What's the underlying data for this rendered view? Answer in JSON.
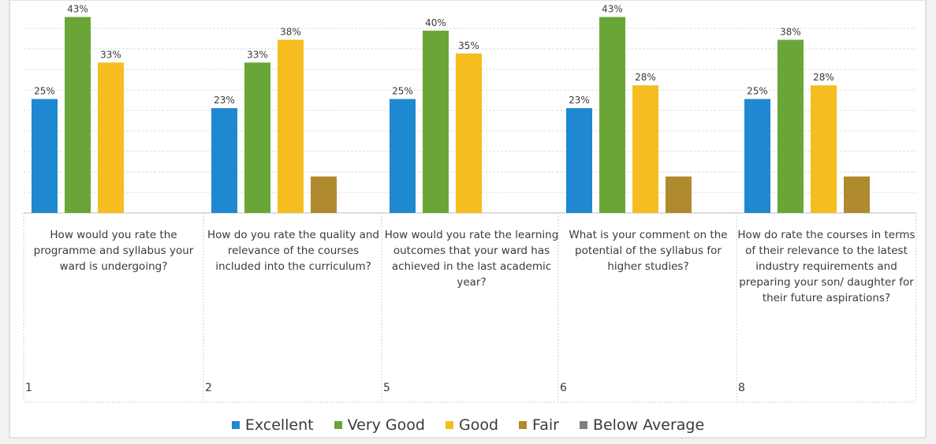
{
  "chart_data": {
    "type": "bar",
    "categories": [
      "How would you rate the programme and syllabus your ward is undergoing?",
      "How do you rate the quality and relevance of the courses included into the curriculum?",
      "How would you rate the learning outcomes that your ward has achieved in the last academic year?",
      "What is your comment on the potential of the syllabus for higher studies?",
      "How do rate the courses in terms of their relevance to the latest industry requirements and preparing your son/ daughter for their future aspirations?"
    ],
    "question_numbers": [
      "1",
      "2",
      "5",
      "6",
      "8"
    ],
    "series": [
      {
        "name": "Excellent",
        "color": "#1e88d0",
        "values": [
          25,
          23,
          25,
          23,
          25
        ],
        "labels": [
          "25%",
          "23%",
          "25%",
          "23%",
          "25%"
        ]
      },
      {
        "name": "Very Good",
        "color": "#6aa637",
        "values": [
          43,
          33,
          40,
          43,
          38
        ],
        "labels": [
          "43%",
          "33%",
          "40%",
          "43%",
          "38%"
        ]
      },
      {
        "name": "Good",
        "color": "#f5bd1f",
        "values": [
          33,
          38,
          35,
          28,
          28
        ],
        "labels": [
          "33%",
          "38%",
          "35%",
          "28%",
          "28%"
        ]
      },
      {
        "name": "Fair",
        "color": "#b08a2e",
        "values": [
          0,
          8,
          0,
          8,
          8
        ],
        "labels": [
          "",
          "",
          "",
          "",
          ""
        ]
      },
      {
        "name": "Below Average",
        "color": "#7f7f7f",
        "values": [
          0,
          0,
          0,
          0,
          0
        ],
        "labels": [
          "",
          "",
          "",
          "",
          ""
        ]
      }
    ],
    "ylim": [
      0,
      45
    ],
    "grid": true,
    "legend_position": "bottom"
  }
}
